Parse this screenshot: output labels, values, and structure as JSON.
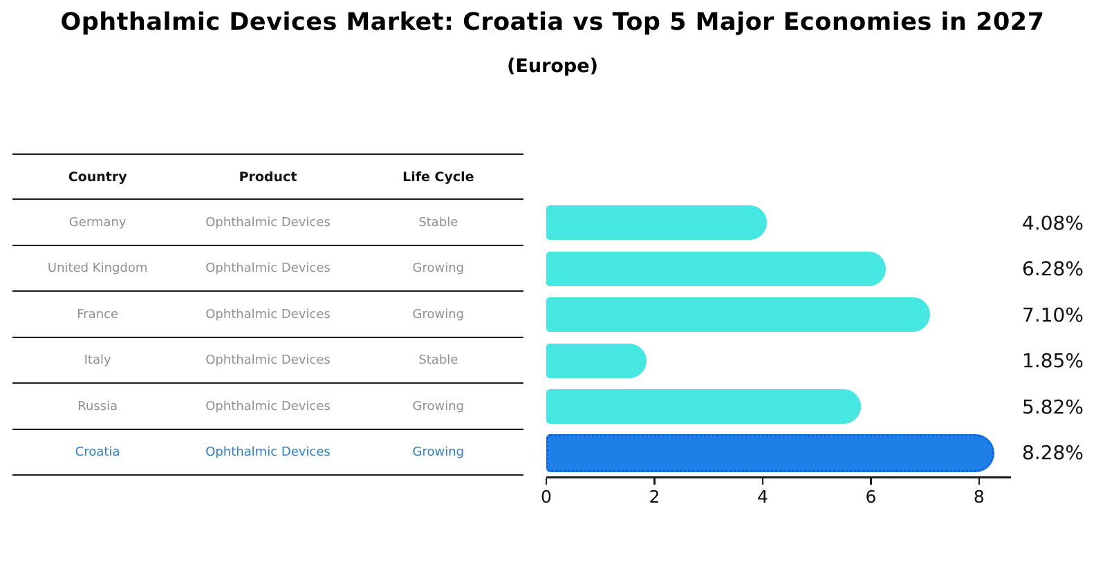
{
  "title": "Ophthalmic Devices Market: Croatia vs Top 5 Major Economies in 2027",
  "subtitle": "(Europe)",
  "table": {
    "headers": [
      "Country",
      "Product",
      "Life Cycle"
    ],
    "rows": [
      {
        "country": "Germany",
        "product": "Ophthalmic Devices",
        "life_cycle": "Stable",
        "highlight": false
      },
      {
        "country": "United Kingdom",
        "product": "Ophthalmic Devices",
        "life_cycle": "Growing",
        "highlight": false
      },
      {
        "country": "France",
        "product": "Ophthalmic Devices",
        "life_cycle": "Growing",
        "highlight": false
      },
      {
        "country": "Italy",
        "product": "Ophthalmic Devices",
        "life_cycle": "Stable",
        "highlight": false
      },
      {
        "country": "Russia",
        "product": "Ophthalmic Devices",
        "life_cycle": "Growing",
        "highlight": false
      },
      {
        "country": "Croatia",
        "product": "Ophthalmic Devices",
        "life_cycle": "Growing",
        "highlight": true
      }
    ]
  },
  "chart_data": {
    "type": "bar",
    "orientation": "horizontal",
    "title": "Ophthalmic Devices Market: Croatia vs Top 5 Major Economies in 2027 (Europe)",
    "categories": [
      "Germany",
      "United Kingdom",
      "France",
      "Italy",
      "Russia",
      "Croatia"
    ],
    "values": [
      4.08,
      6.28,
      7.1,
      1.85,
      5.82,
      8.28
    ],
    "value_labels": [
      "4.08%",
      "6.28%",
      "7.10%",
      "1.85%",
      "5.82%",
      "8.28%"
    ],
    "x_tick_values": [
      0,
      2,
      4,
      6,
      8
    ],
    "x_tick_labels": [
      "0",
      "2",
      "4",
      "6",
      "8"
    ],
    "xlim": [
      0,
      8.5
    ],
    "grid": false,
    "legend": null,
    "bar_color": "#46E6E1",
    "highlight_color": "#1E7FE8",
    "highlight_index": 5
  },
  "colors": {
    "header_text": "#111111",
    "row_text": "#909090",
    "highlight_text": "#2E7EC9",
    "value_label": "#111111"
  }
}
